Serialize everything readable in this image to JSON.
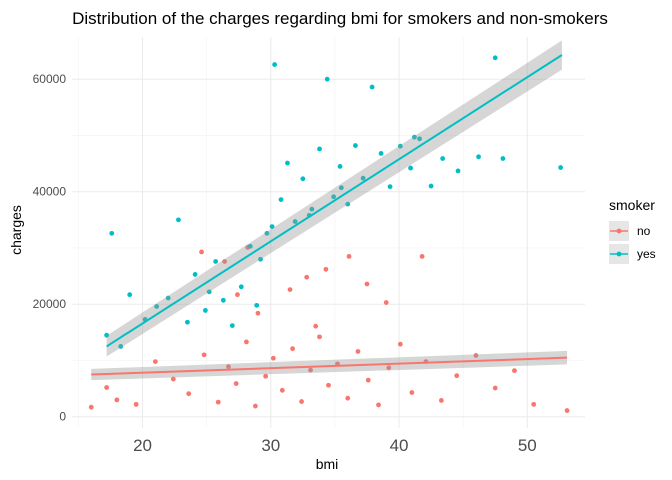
{
  "chart_data": {
    "type": "scatter",
    "title": "Distribution of the charges regarding bmi for smokers and non-smokers",
    "xlabel": "bmi",
    "ylabel": "charges",
    "xlim": [
      14.5,
      54.5
    ],
    "ylim": [
      -2000,
      67500
    ],
    "x_ticks": [
      20,
      30,
      40,
      50
    ],
    "y_ticks": [
      0,
      20000,
      40000,
      60000
    ],
    "x_tick_labels": [
      "20",
      "30",
      "40",
      "50"
    ],
    "y_tick_labels": [
      "0",
      "20000",
      "40000",
      "60000"
    ],
    "grid": true,
    "legend": {
      "title": "smoker",
      "position": "right",
      "entries": [
        "no",
        "yes"
      ]
    },
    "series": [
      {
        "name": "no",
        "color": "#F8766D",
        "fit": {
          "x": [
            16.0,
            53.1
          ],
          "y": [
            7500,
            10500
          ],
          "ci_low_start": 6500,
          "ci_high_start": 8500,
          "ci_low_end": 9300,
          "ci_high_end": 11700
        },
        "points": [
          [
            16.0,
            1700
          ],
          [
            17.2,
            5200
          ],
          [
            18.0,
            3000
          ],
          [
            19.5,
            2200
          ],
          [
            21.0,
            9800
          ],
          [
            22.4,
            6700
          ],
          [
            23.6,
            4100
          ],
          [
            24.8,
            11000
          ],
          [
            25.9,
            2600
          ],
          [
            26.7,
            8900
          ],
          [
            27.3,
            5900
          ],
          [
            28.1,
            13300
          ],
          [
            28.8,
            1900
          ],
          [
            29.6,
            7200
          ],
          [
            30.2,
            10400
          ],
          [
            30.9,
            4700
          ],
          [
            31.7,
            12100
          ],
          [
            32.4,
            2700
          ],
          [
            33.1,
            8300
          ],
          [
            33.8,
            14200
          ],
          [
            34.5,
            5600
          ],
          [
            35.2,
            9400
          ],
          [
            36.0,
            3300
          ],
          [
            36.8,
            11600
          ],
          [
            37.6,
            6500
          ],
          [
            38.4,
            2100
          ],
          [
            39.2,
            8700
          ],
          [
            40.1,
            12900
          ],
          [
            41.0,
            4300
          ],
          [
            42.1,
            9800
          ],
          [
            43.3,
            2900
          ],
          [
            44.5,
            7300
          ],
          [
            46.0,
            10900
          ],
          [
            47.5,
            5100
          ],
          [
            49.0,
            8200
          ],
          [
            50.5,
            2200
          ],
          [
            53.1,
            1100
          ],
          [
            24.6,
            29300
          ],
          [
            26.4,
            27600
          ],
          [
            28.2,
            30100
          ],
          [
            31.5,
            22600
          ],
          [
            32.8,
            24800
          ],
          [
            34.3,
            26200
          ],
          [
            36.1,
            28500
          ],
          [
            37.5,
            23600
          ],
          [
            39.0,
            20300
          ],
          [
            41.8,
            28500
          ],
          [
            29.0,
            18400
          ],
          [
            33.5,
            16100
          ],
          [
            27.4,
            21700
          ]
        ]
      },
      {
        "name": "yes",
        "color": "#00BFC4",
        "fit": {
          "x": [
            17.2,
            52.7
          ],
          "y": [
            12500,
            64300
          ],
          "ci_low_start": 10700,
          "ci_high_start": 14400,
          "ci_low_end": 61700,
          "ci_high_end": 66900
        },
        "points": [
          [
            17.2,
            14500
          ],
          [
            17.6,
            32600
          ],
          [
            18.3,
            12500
          ],
          [
            19.0,
            21700
          ],
          [
            20.2,
            17300
          ],
          [
            21.1,
            19600
          ],
          [
            22.0,
            21100
          ],
          [
            22.8,
            35000
          ],
          [
            23.5,
            16800
          ],
          [
            24.1,
            25300
          ],
          [
            24.9,
            18900
          ],
          [
            25.7,
            27600
          ],
          [
            26.3,
            20700
          ],
          [
            27.0,
            16200
          ],
          [
            27.7,
            23100
          ],
          [
            28.4,
            30300
          ],
          [
            28.9,
            19800
          ],
          [
            29.7,
            32600
          ],
          [
            30.3,
            62600
          ],
          [
            30.8,
            38600
          ],
          [
            31.3,
            45100
          ],
          [
            31.9,
            34700
          ],
          [
            32.5,
            42300
          ],
          [
            33.2,
            36900
          ],
          [
            33.8,
            47600
          ],
          [
            34.4,
            60000
          ],
          [
            34.9,
            39100
          ],
          [
            35.4,
            44500
          ],
          [
            36.0,
            37800
          ],
          [
            36.6,
            48200
          ],
          [
            37.2,
            42400
          ],
          [
            37.9,
            58600
          ],
          [
            38.6,
            46800
          ],
          [
            39.3,
            40900
          ],
          [
            40.1,
            48100
          ],
          [
            40.9,
            44200
          ],
          [
            41.6,
            49400
          ],
          [
            42.5,
            41000
          ],
          [
            43.4,
            45900
          ],
          [
            44.6,
            43700
          ],
          [
            46.2,
            46200
          ],
          [
            47.5,
            63800
          ],
          [
            48.1,
            45900
          ],
          [
            52.6,
            44300
          ],
          [
            41.2,
            49700
          ],
          [
            35.5,
            40700
          ],
          [
            33.0,
            35800
          ],
          [
            29.2,
            28000
          ],
          [
            30.1,
            33800
          ],
          [
            25.2,
            22200
          ]
        ]
      }
    ]
  }
}
